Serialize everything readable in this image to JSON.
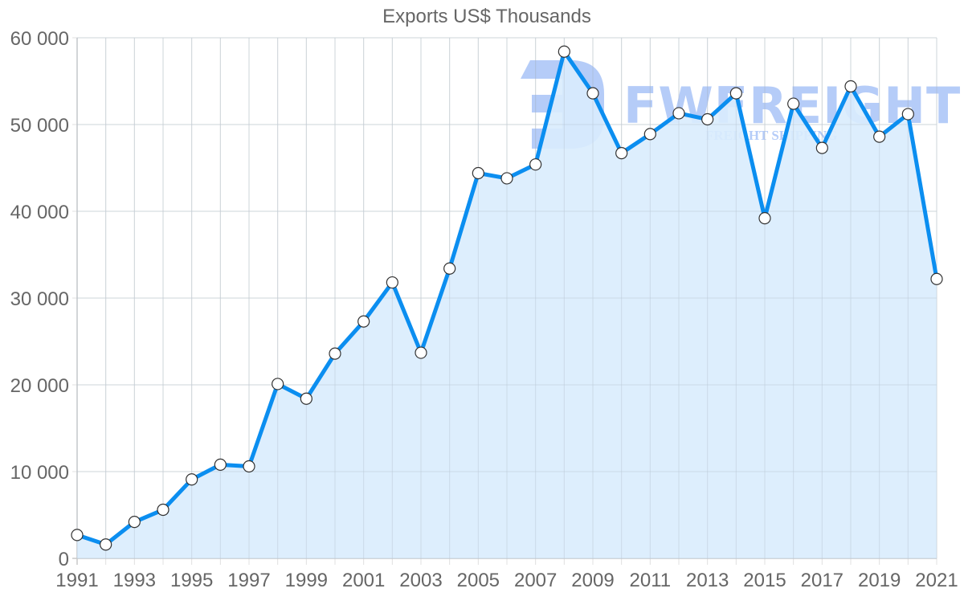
{
  "chart_data": {
    "type": "area",
    "title": "Exports US$ Thousands",
    "xlabel": "",
    "ylabel": "",
    "x": [
      1991,
      1992,
      1993,
      1994,
      1995,
      1996,
      1997,
      1998,
      1999,
      2000,
      2001,
      2002,
      2003,
      2004,
      2005,
      2006,
      2007,
      2008,
      2009,
      2010,
      2011,
      2012,
      2013,
      2014,
      2015,
      2016,
      2017,
      2018,
      2019,
      2020,
      2021
    ],
    "series": [
      {
        "name": "Exports US$ Thousands",
        "values": [
          2700,
          1600,
          4200,
          5600,
          9100,
          10800,
          10600,
          20100,
          18400,
          23600,
          27300,
          31800,
          23700,
          33400,
          44400,
          43800,
          45400,
          58400,
          53600,
          46700,
          48900,
          51300,
          50600,
          53600,
          39200,
          52400,
          47300,
          54400,
          48600,
          51200,
          32200
        ],
        "line_color": "#0b8ef0",
        "fill_color": "#d9ecfd",
        "marker_fill": "#ffffff",
        "marker_stroke": "#333333"
      }
    ],
    "ylim": [
      0,
      60000
    ],
    "y_ticks": [
      {
        "value": 0,
        "label": "0"
      },
      {
        "value": 10000,
        "label": "10 000"
      },
      {
        "value": 20000,
        "label": "20 000"
      },
      {
        "value": 30000,
        "label": "30 000"
      },
      {
        "value": 40000,
        "label": "40 000"
      },
      {
        "value": 50000,
        "label": "50 000"
      },
      {
        "value": 60000,
        "label": "60 000"
      }
    ],
    "x_tick_labels": [
      "1991",
      "1993",
      "1995",
      "1997",
      "1999",
      "2001",
      "2003",
      "2005",
      "2007",
      "2009",
      "2011",
      "2013",
      "2015",
      "2017",
      "2019",
      "2021"
    ],
    "grid": true,
    "legend": "none"
  },
  "watermark": {
    "brand": "FWFREIGHT",
    "tagline": "FREIGHT SHIPPING"
  }
}
